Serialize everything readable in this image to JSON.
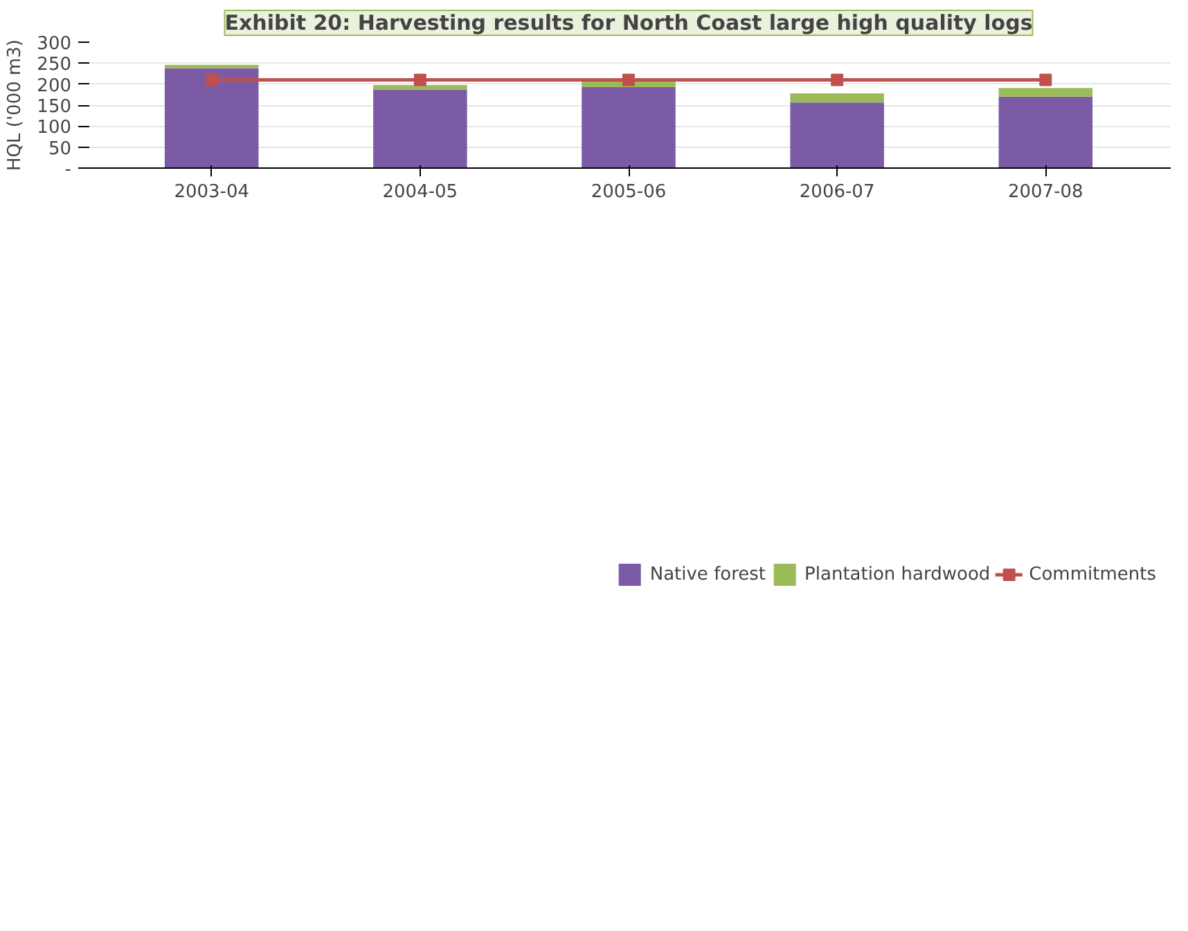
{
  "chart_data": {
    "type": "bar",
    "stacked": true,
    "title": "Exhibit 20: Harvesting results for North Coast large high quality logs",
    "ylabel": "HQL ('000 m3)",
    "categories": [
      "2003-04",
      "2004-05",
      "2005-06",
      "2006-07",
      "2007-08"
    ],
    "series": [
      {
        "name": "Native forest",
        "color": "#7b5ba6",
        "values": [
          238,
          187,
          193,
          156,
          170
        ]
      },
      {
        "name": "Plantation hardwood",
        "color": "#9bbb59",
        "values": [
          8,
          11,
          13,
          22,
          21
        ]
      },
      {
        "name": "Commitments",
        "type": "line",
        "color": "#c0504d",
        "marker": "square",
        "values": [
          210,
          210,
          210,
          210,
          210
        ]
      }
    ],
    "ylim": [
      0,
      300
    ],
    "yticks": [
      {
        "value": 0,
        "label": "-"
      },
      50,
      100,
      150,
      200,
      250,
      300
    ],
    "grid": "y",
    "legend": "bottom"
  }
}
